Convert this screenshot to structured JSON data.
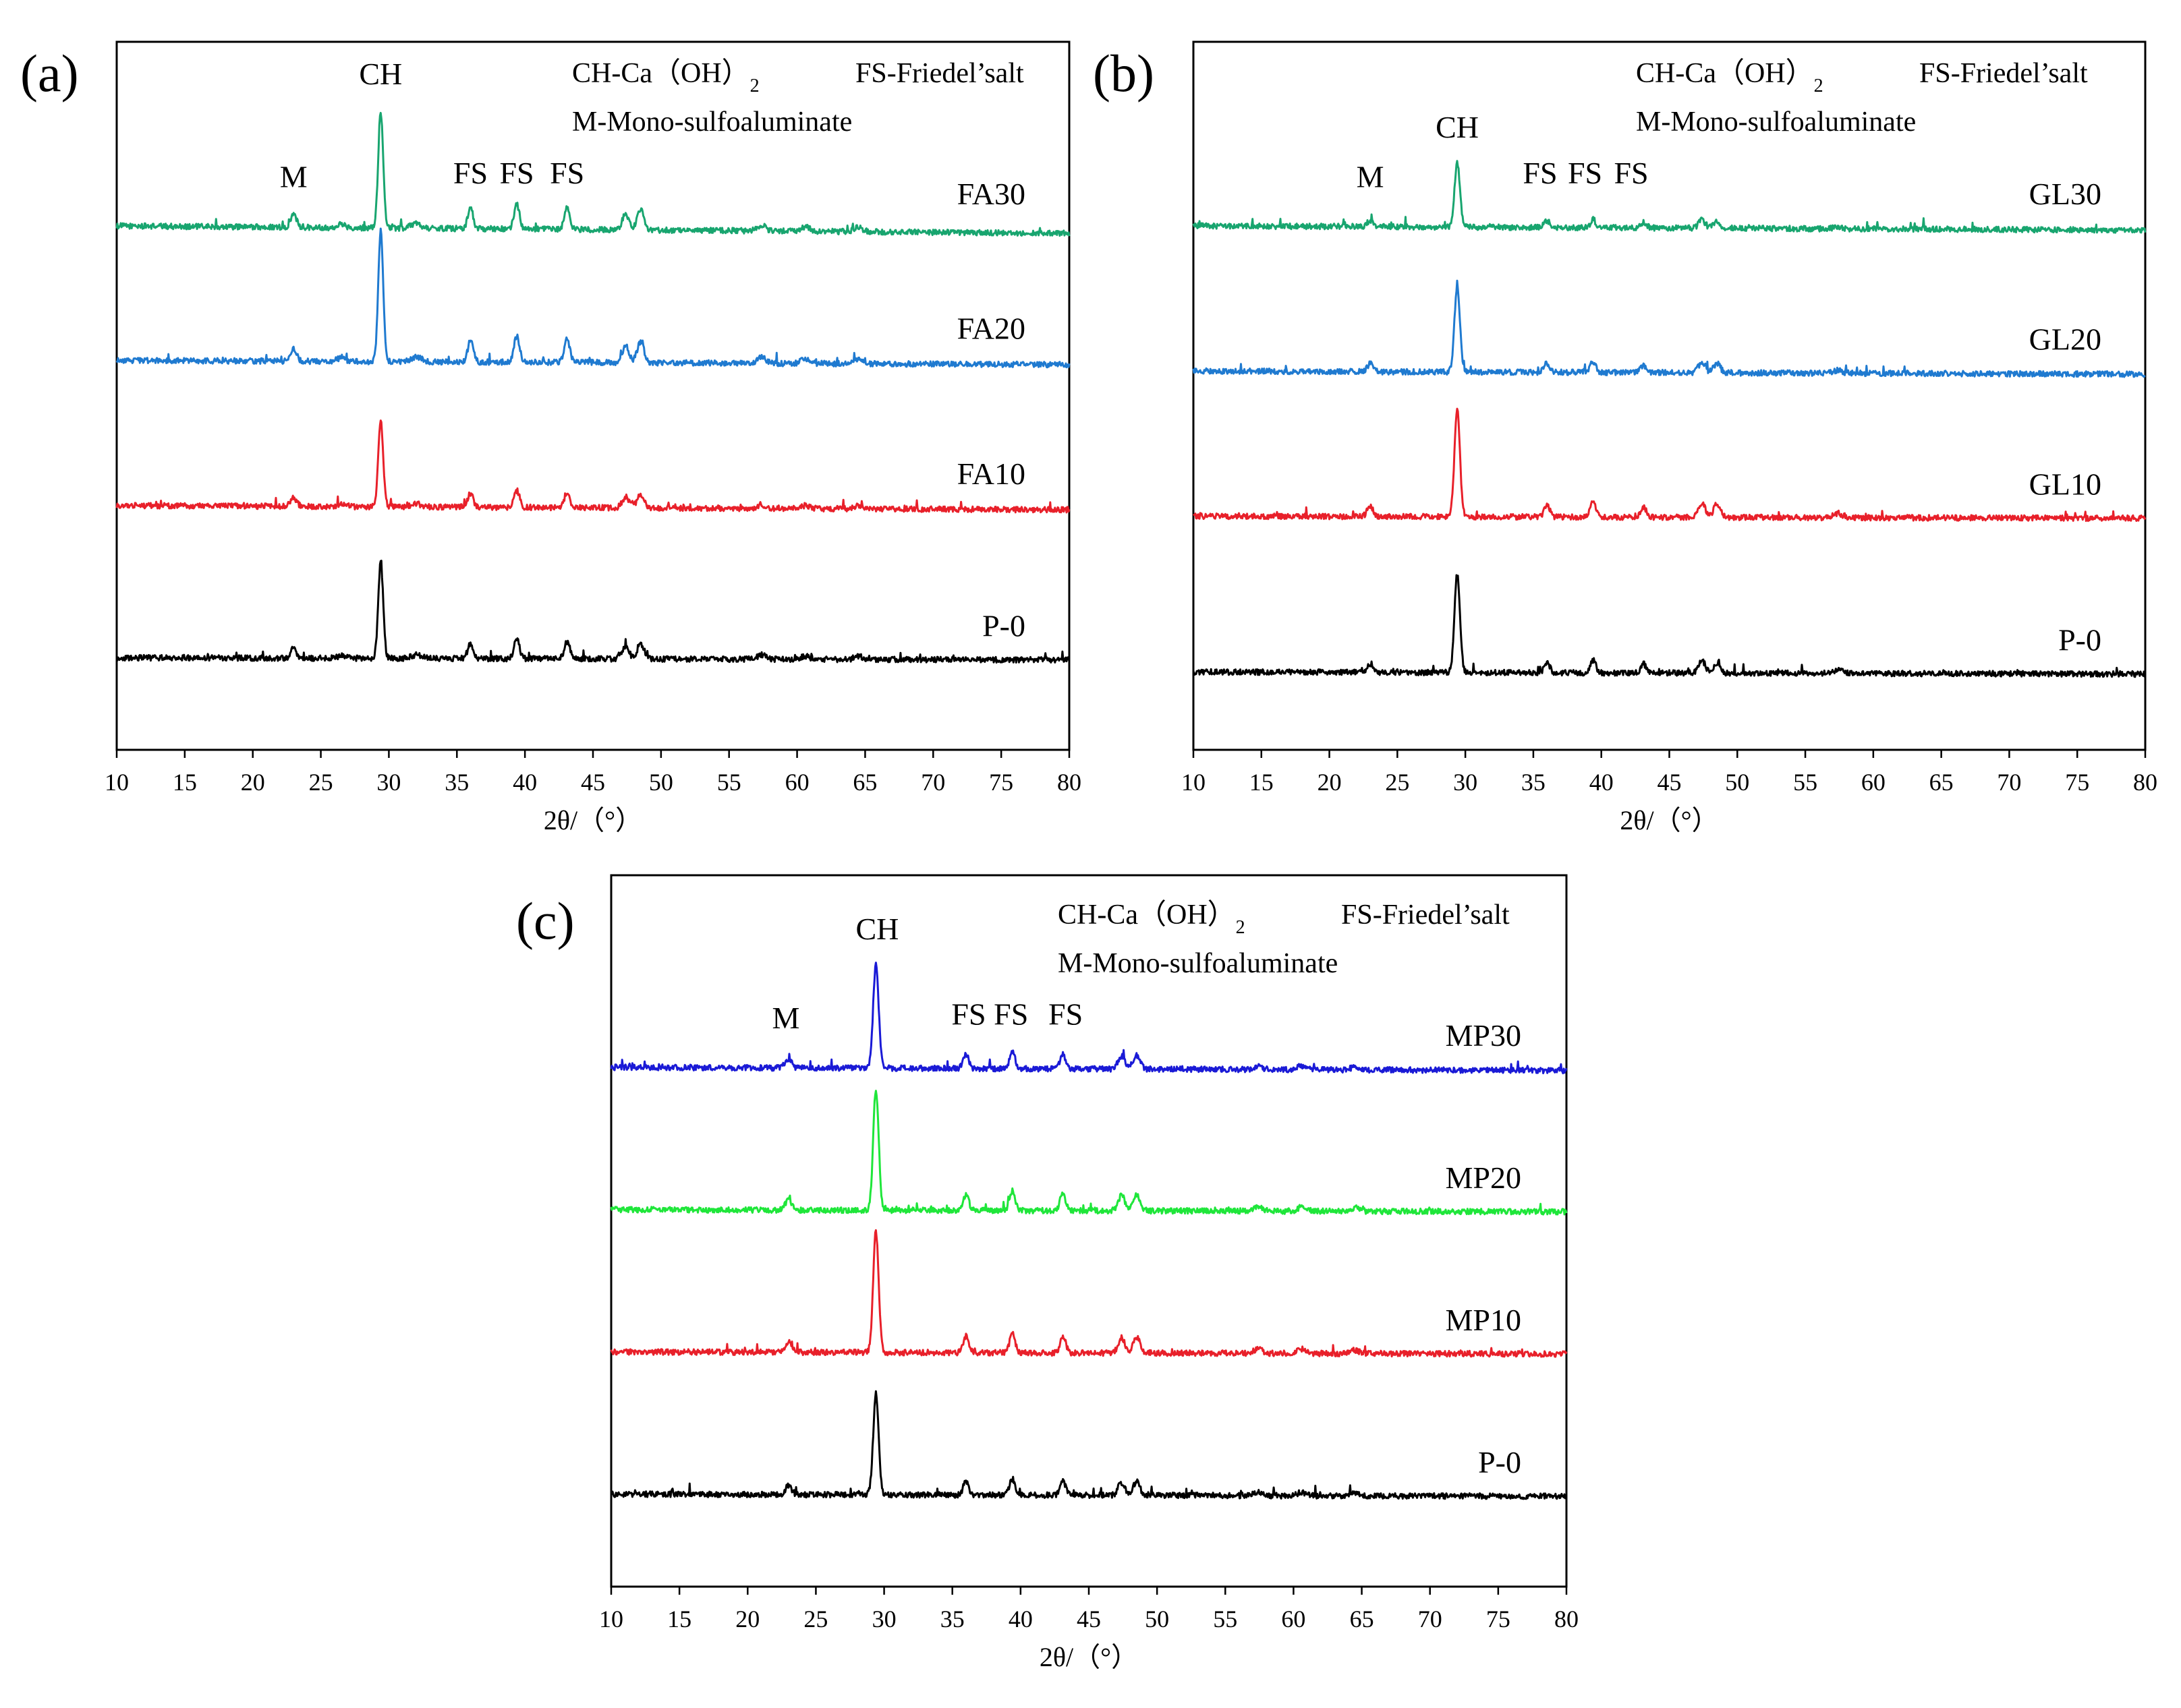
{
  "figure": {
    "legend": {
      "ch_prefix": "CH-Ca（OH）",
      "ch_subscript": "2",
      "fs": "FS-Friedel’salt",
      "m": "M-Mono-sulfoaluminate"
    },
    "peak_labels": {
      "ch": "CH",
      "m": "M",
      "fs": "FS"
    }
  },
  "chart_data": [
    {
      "type": "line",
      "panel_label": "(a)",
      "xlabel": "2θ/（°）",
      "ylabel": "",
      "xlim": [
        10,
        80
      ],
      "xticks": [
        "10",
        "15",
        "20",
        "25",
        "30",
        "35",
        "40",
        "45",
        "50",
        "55",
        "60",
        "65",
        "70",
        "75",
        "80"
      ],
      "peak_annotations": [
        {
          "label": "M",
          "x": 23.0
        },
        {
          "label": "CH",
          "x": 29.4
        },
        {
          "label": "FS",
          "x": 36.0
        },
        {
          "label": "FS",
          "x": 39.4
        },
        {
          "label": "FS",
          "x": 43.1
        }
      ],
      "peaks": [
        {
          "x": 23.0,
          "w": 0.22,
          "rel": 0.11
        },
        {
          "x": 26.5,
          "w": 0.3,
          "rel": 0.03
        },
        {
          "x": 29.4,
          "w": 0.18,
          "rel": 1.0
        },
        {
          "x": 32.0,
          "w": 0.4,
          "rel": 0.04
        },
        {
          "x": 36.0,
          "w": 0.2,
          "rel": 0.18
        },
        {
          "x": 39.4,
          "w": 0.2,
          "rel": 0.22
        },
        {
          "x": 43.1,
          "w": 0.2,
          "rel": 0.2
        },
        {
          "x": 47.4,
          "w": 0.25,
          "rel": 0.14
        },
        {
          "x": 48.5,
          "w": 0.25,
          "rel": 0.18
        },
        {
          "x": 57.4,
          "w": 0.3,
          "rel": 0.05
        },
        {
          "x": 60.6,
          "w": 0.3,
          "rel": 0.04
        },
        {
          "x": 64.5,
          "w": 0.3,
          "rel": 0.04
        }
      ],
      "series": [
        {
          "name": "FA30",
          "color": "#18a56f",
          "baseline": 0.74,
          "slope": 0.035,
          "main_height": 0.165,
          "other_scale": 0.95
        },
        {
          "name": "FA20",
          "color": "#1f7ad0",
          "baseline": 0.55,
          "slope": 0.02,
          "main_height": 0.185,
          "other_scale": 0.9
        },
        {
          "name": "FA10",
          "color": "#e8202a",
          "baseline": 0.345,
          "slope": 0.02,
          "main_height": 0.12,
          "other_scale": 0.9
        },
        {
          "name": "P-0",
          "color": "#000000",
          "baseline": 0.13,
          "slope": 0.01,
          "main_height": 0.135,
          "other_scale": 0.9
        }
      ]
    },
    {
      "type": "line",
      "panel_label": "(b)",
      "xlabel": "2θ/（°）",
      "ylabel": "",
      "xlim": [
        10,
        80
      ],
      "xticks": [
        "10",
        "15",
        "20",
        "25",
        "30",
        "35",
        "40",
        "45",
        "50",
        "55",
        "60",
        "65",
        "70",
        "75",
        "80"
      ],
      "peak_annotations": [
        {
          "label": "M",
          "x": 23.0
        },
        {
          "label": "CH",
          "x": 29.4
        },
        {
          "label": "FS",
          "x": 35.5
        },
        {
          "label": "FS",
          "x": 38.8
        },
        {
          "label": "FS",
          "x": 42.2
        }
      ],
      "peaks": [
        {
          "x": 23.0,
          "w": 0.22,
          "rel": 0.1
        },
        {
          "x": 29.4,
          "w": 0.2,
          "rel": 1.0
        },
        {
          "x": 36.0,
          "w": 0.2,
          "rel": 0.12
        },
        {
          "x": 39.4,
          "w": 0.2,
          "rel": 0.14
        },
        {
          "x": 43.1,
          "w": 0.2,
          "rel": 0.1
        },
        {
          "x": 47.4,
          "w": 0.25,
          "rel": 0.14
        },
        {
          "x": 48.5,
          "w": 0.25,
          "rel": 0.12
        },
        {
          "x": 57.4,
          "w": 0.3,
          "rel": 0.04
        }
      ],
      "series": [
        {
          "name": "GL30",
          "color": "#18a56f",
          "baseline": 0.74,
          "slope": 0.02,
          "main_height": 0.09,
          "other_scale": 0.9
        },
        {
          "name": "GL20",
          "color": "#1f7ad0",
          "baseline": 0.535,
          "slope": 0.015,
          "main_height": 0.12,
          "other_scale": 0.9
        },
        {
          "name": "GL10",
          "color": "#e8202a",
          "baseline": 0.33,
          "slope": 0.01,
          "main_height": 0.15,
          "other_scale": 1.0
        },
        {
          "name": "P-0",
          "color": "#000000",
          "baseline": 0.11,
          "slope": 0.01,
          "main_height": 0.14,
          "other_scale": 0.9
        }
      ]
    },
    {
      "type": "line",
      "panel_label": "(c)",
      "xlabel": "2θ/（°）",
      "ylabel": "",
      "xlim": [
        10,
        80
      ],
      "xticks": [
        "10",
        "15",
        "20",
        "25",
        "30",
        "35",
        "40",
        "45",
        "50",
        "55",
        "60",
        "65",
        "70",
        "75",
        "80"
      ],
      "peak_annotations": [
        {
          "label": "M",
          "x": 22.8
        },
        {
          "label": "CH",
          "x": 29.5
        },
        {
          "label": "FS",
          "x": 36.2
        },
        {
          "label": "FS",
          "x": 39.3
        },
        {
          "label": "FS",
          "x": 43.3
        }
      ],
      "peaks": [
        {
          "x": 23.0,
          "w": 0.22,
          "rel": 0.1
        },
        {
          "x": 29.4,
          "w": 0.2,
          "rel": 1.0
        },
        {
          "x": 36.0,
          "w": 0.2,
          "rel": 0.15
        },
        {
          "x": 39.4,
          "w": 0.2,
          "rel": 0.18
        },
        {
          "x": 43.1,
          "w": 0.2,
          "rel": 0.16
        },
        {
          "x": 47.4,
          "w": 0.25,
          "rel": 0.14
        },
        {
          "x": 48.5,
          "w": 0.25,
          "rel": 0.15
        },
        {
          "x": 57.4,
          "w": 0.3,
          "rel": 0.04
        },
        {
          "x": 60.6,
          "w": 0.3,
          "rel": 0.04
        },
        {
          "x": 64.5,
          "w": 0.3,
          "rel": 0.03
        }
      ],
      "series": [
        {
          "name": "MP30",
          "color": "#1a1ad6",
          "baseline": 0.73,
          "slope": 0.015,
          "main_height": 0.145,
          "other_scale": 0.9
        },
        {
          "name": "MP20",
          "color": "#1fe63a",
          "baseline": 0.53,
          "slope": 0.01,
          "main_height": 0.17,
          "other_scale": 0.9
        },
        {
          "name": "MP10",
          "color": "#e8202a",
          "baseline": 0.33,
          "slope": 0.01,
          "main_height": 0.17,
          "other_scale": 0.9
        },
        {
          "name": "P-0",
          "color": "#000000",
          "baseline": 0.13,
          "slope": 0.01,
          "main_height": 0.14,
          "other_scale": 0.9
        }
      ]
    }
  ]
}
